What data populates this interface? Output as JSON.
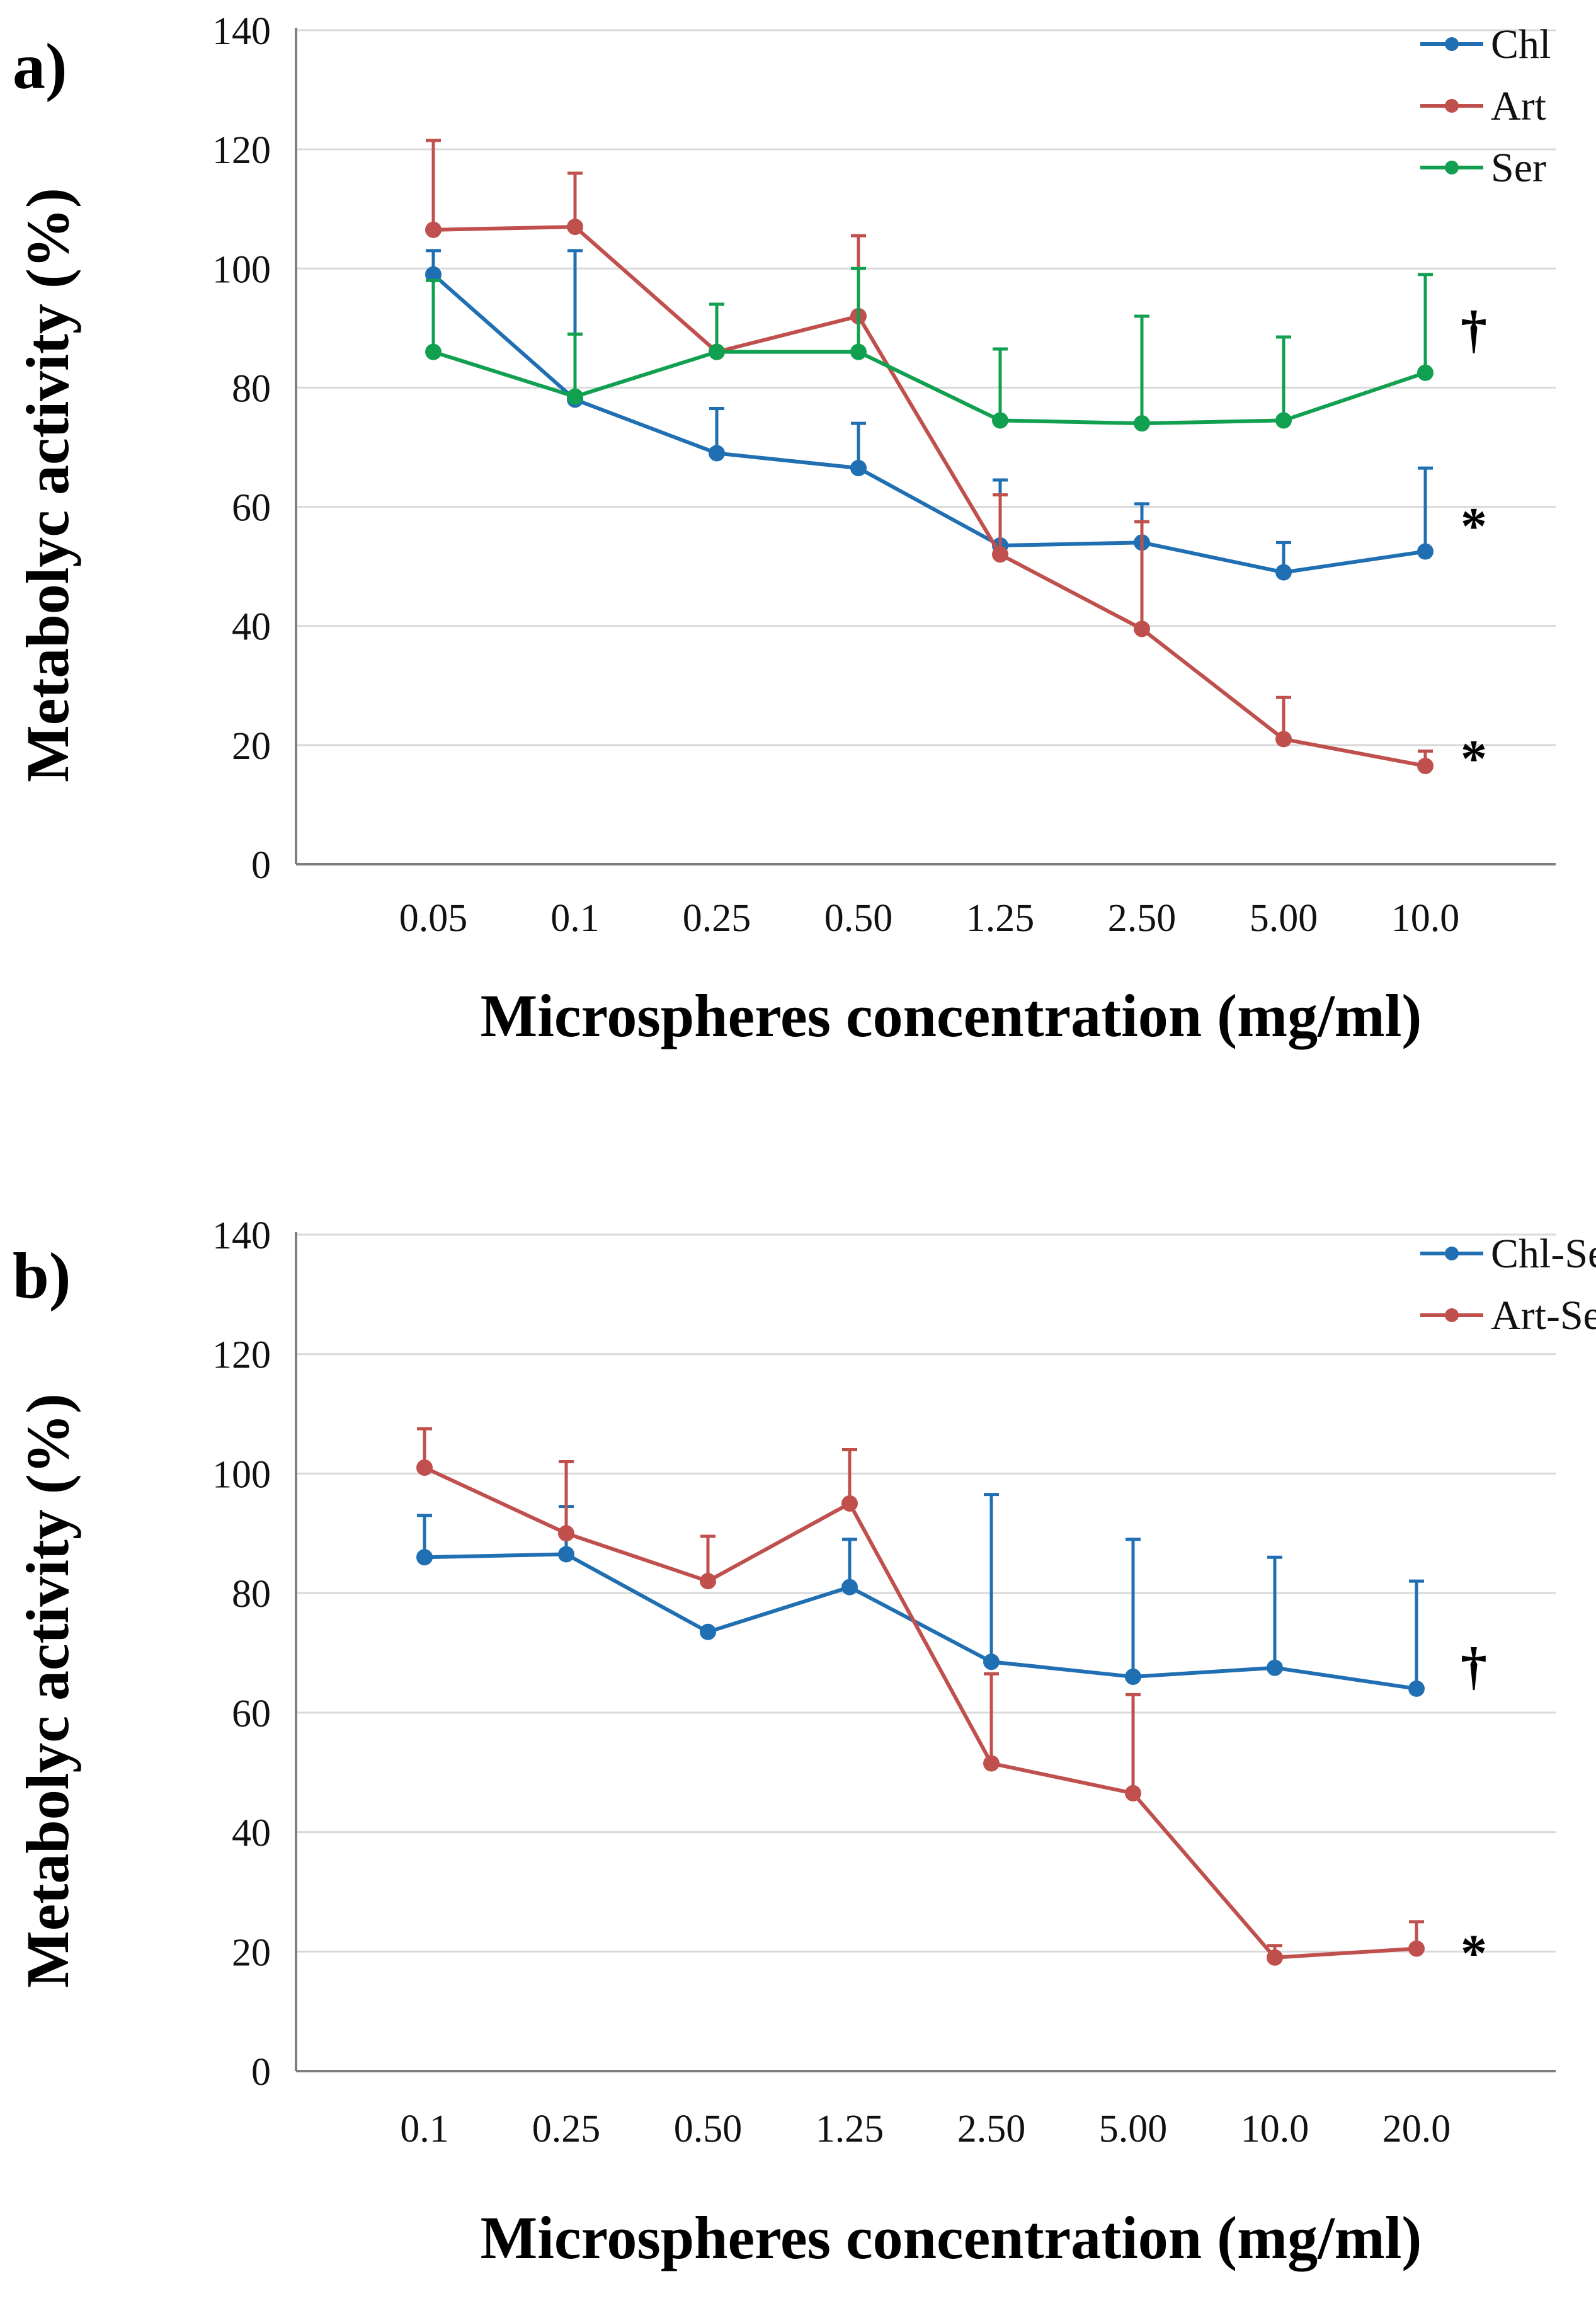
{
  "chart_data": [
    {
      "type": "line",
      "panel_label": "a)",
      "xlabel": "Microspheres concentration (mg/ml)",
      "ylabel": "Metabolyc activity (%)",
      "ylim": [
        0,
        140
      ],
      "yticks": [
        0,
        20,
        40,
        60,
        80,
        100,
        120,
        140
      ],
      "ytick_labels": [
        "0",
        "20",
        "40",
        "60",
        "80",
        "100",
        "120",
        "140"
      ],
      "grid": true,
      "legend_position": "top-right",
      "categories": [
        "0.05",
        "0.1",
        "0.25",
        "0.50",
        "1.25",
        "2.50",
        "5.00",
        "10.0"
      ],
      "series": [
        {
          "name": "Chl",
          "color": "#1f6fb2",
          "values": [
            99,
            78,
            69,
            66.5,
            53.5,
            54,
            49,
            52.5
          ],
          "errors": [
            4,
            25,
            7.5,
            7.5,
            11,
            6.5,
            5,
            14
          ]
        },
        {
          "name": "Art",
          "color": "#c0504d",
          "values": [
            106.5,
            107,
            86,
            92,
            52,
            39.5,
            21,
            16.5
          ],
          "errors": [
            15,
            9,
            8,
            13.5,
            10,
            18,
            7,
            2.5
          ]
        },
        {
          "name": "Ser",
          "color": "#11a050",
          "values": [
            86,
            78.5,
            86,
            86,
            74.5,
            74,
            74.5,
            82.5
          ],
          "errors": [
            12,
            10.5,
            8,
            14,
            12,
            18,
            14,
            16.5
          ]
        }
      ],
      "annotations": [
        {
          "text": "†",
          "y": 90,
          "color": "#000000"
        },
        {
          "text": "*",
          "y": 57,
          "color": "#000000"
        },
        {
          "text": "*",
          "y": 18,
          "color": "#000000"
        }
      ]
    },
    {
      "type": "line",
      "panel_label": "b)",
      "xlabel": "Microspheres concentration (mg/ml)",
      "ylabel": "Metabolyc activity (%)",
      "ylim": [
        0,
        140
      ],
      "yticks": [
        0,
        20,
        40,
        60,
        80,
        100,
        120,
        140
      ],
      "ytick_labels": [
        "0",
        "20",
        "40",
        "60",
        "80",
        "100",
        "120",
        "140"
      ],
      "grid": true,
      "legend_position": "top-right",
      "categories": [
        "0.1",
        "0.25",
        "0.50",
        "1.25",
        "2.50",
        "5.00",
        "10.0",
        "20.0"
      ],
      "series": [
        {
          "name": "Chl-Ser",
          "color": "#1f6fb2",
          "values": [
            86,
            86.5,
            73.5,
            81,
            68.5,
            66,
            67.5,
            64
          ],
          "errors": [
            7,
            8,
            0,
            8,
            28,
            23,
            18.5,
            18
          ]
        },
        {
          "name": "Art-Ser",
          "color": "#c0504d",
          "values": [
            101,
            90,
            82,
            95,
            51.5,
            46.5,
            19,
            20.5
          ],
          "errors": [
            6.5,
            12,
            7.5,
            9,
            15,
            16.5,
            2,
            4.5
          ]
        }
      ],
      "annotations": [
        {
          "text": "†",
          "y": 68,
          "color": "#000000"
        },
        {
          "text": "*",
          "y": 20,
          "color": "#000000"
        }
      ]
    }
  ]
}
